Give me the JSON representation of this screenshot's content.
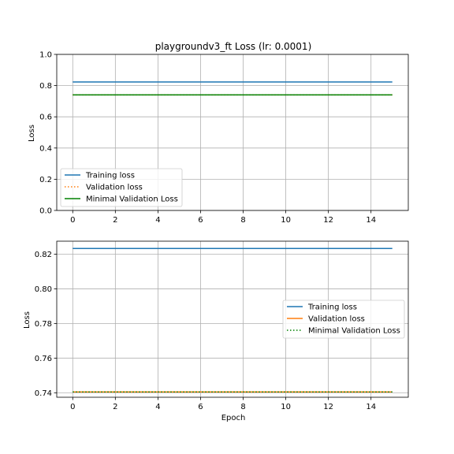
{
  "chart_data": [
    {
      "type": "line",
      "title": "playgroundv3_ft Loss (lr: 0.0001)",
      "xlabel": "",
      "ylabel": "Loss",
      "xlim": [
        -0.75,
        15.75
      ],
      "ylim": [
        0.0,
        1.0
      ],
      "xticks": [
        0,
        2,
        4,
        6,
        8,
        10,
        12,
        14
      ],
      "xtick_labels": [
        "0",
        "2",
        "4",
        "6",
        "8",
        "10",
        "12",
        "14"
      ],
      "yticks": [
        0.0,
        0.2,
        0.4,
        0.6,
        0.8,
        1.0
      ],
      "ytick_labels": [
        "0.0",
        "0.2",
        "0.4",
        "0.6",
        "0.8",
        "1.0"
      ],
      "grid": true,
      "legend_position": "lower-left",
      "series": [
        {
          "name": "Training loss",
          "color": "#1f77b4",
          "style": "solid",
          "x": [
            0,
            15
          ],
          "y": [
            0.8233,
            0.8233
          ]
        },
        {
          "name": "Validation loss",
          "color": "#ff7f0e",
          "style": "dotted",
          "x": [
            0,
            15
          ],
          "y": [
            0.7405,
            0.7405
          ]
        },
        {
          "name": "Minimal Validation Loss",
          "color": "#008000",
          "style": "solid",
          "x": [
            0,
            15
          ],
          "y": [
            0.7405,
            0.7405
          ]
        }
      ]
    },
    {
      "type": "line",
      "title": "",
      "xlabel": "Epoch",
      "ylabel": "Loss",
      "xlim": [
        -0.75,
        15.75
      ],
      "ylim": [
        0.7374,
        0.8275
      ],
      "xticks": [
        0,
        2,
        4,
        6,
        8,
        10,
        12,
        14
      ],
      "xtick_labels": [
        "0",
        "2",
        "4",
        "6",
        "8",
        "10",
        "12",
        "14"
      ],
      "yticks": [
        0.74,
        0.76,
        0.78,
        0.8,
        0.82
      ],
      "ytick_labels": [
        "0.74",
        "0.76",
        "0.78",
        "0.80",
        "0.82"
      ],
      "grid": true,
      "legend_position": "center-right",
      "series": [
        {
          "name": "Training loss",
          "color": "#1f77b4",
          "style": "solid",
          "x": [
            0,
            15
          ],
          "y": [
            0.8233,
            0.8233
          ]
        },
        {
          "name": "Validation loss",
          "color": "#ff7f0e",
          "style": "solid",
          "x": [
            0,
            15
          ],
          "y": [
            0.7405,
            0.7405
          ]
        },
        {
          "name": "Minimal Validation Loss",
          "color": "#008000",
          "style": "dotted",
          "x": [
            0,
            15
          ],
          "y": [
            0.7405,
            0.7405
          ]
        }
      ]
    }
  ]
}
